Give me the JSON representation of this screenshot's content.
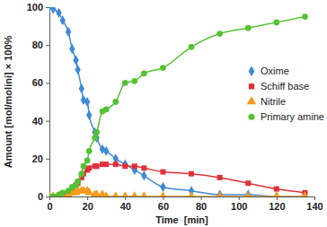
{
  "chart_data": {
    "type": "line",
    "x_label": "Time  [min]",
    "y_label": "Amount [mol/molini] × 100%",
    "x": [
      0,
      2,
      5,
      7,
      10,
      12,
      14,
      15,
      17,
      18,
      20,
      21,
      24,
      25,
      28,
      30,
      35,
      40,
      45,
      50,
      60,
      75,
      90,
      105,
      120,
      135
    ],
    "series": [
      {
        "name": "Oxime",
        "color": "#3f8ad6",
        "marker": "diamond",
        "line_style": "solid",
        "values": [
          100,
          99,
          97,
          93,
          87,
          78,
          72,
          67,
          57,
          51,
          50,
          43,
          34,
          31,
          25,
          24,
          20,
          17,
          14,
          11,
          5,
          3,
          1,
          1,
          0,
          0
        ]
      },
      {
        "name": "Schiff base",
        "color": "#e0303a",
        "marker": "square",
        "line_style": "solid",
        "values": [
          0,
          0,
          0,
          1,
          2,
          4,
          6,
          7,
          10,
          12,
          14,
          15,
          16,
          16,
          17,
          17,
          17,
          16,
          16,
          15,
          13,
          12,
          10,
          7,
          4,
          2
        ]
      },
      {
        "name": "Nitrile",
        "color": "#f59a1a",
        "marker": "triangle",
        "line_style": "solid",
        "values": [
          0,
          0,
          0,
          0,
          1,
          2,
          2,
          3,
          3,
          3,
          3,
          2,
          1,
          1,
          1,
          0,
          0,
          0,
          0,
          0,
          0,
          0,
          0,
          0,
          0,
          0
        ]
      },
      {
        "name": "Primary amine",
        "color": "#55c233",
        "marker": "circle",
        "line_style": "solid",
        "values": [
          0,
          0,
          1,
          2,
          3,
          5,
          6,
          8,
          12,
          16,
          19,
          24,
          31,
          34,
          45,
          46,
          50,
          60,
          61,
          65,
          68,
          79,
          86,
          89,
          92,
          95
        ]
      }
    ],
    "xlim": [
      0,
      140
    ],
    "xticks": [
      0,
      20,
      40,
      60,
      80,
      100,
      120,
      140
    ],
    "ylim": [
      0,
      100
    ],
    "yticks": [
      0,
      20,
      40,
      60,
      80,
      100
    ],
    "grid": false,
    "legend": "right"
  }
}
